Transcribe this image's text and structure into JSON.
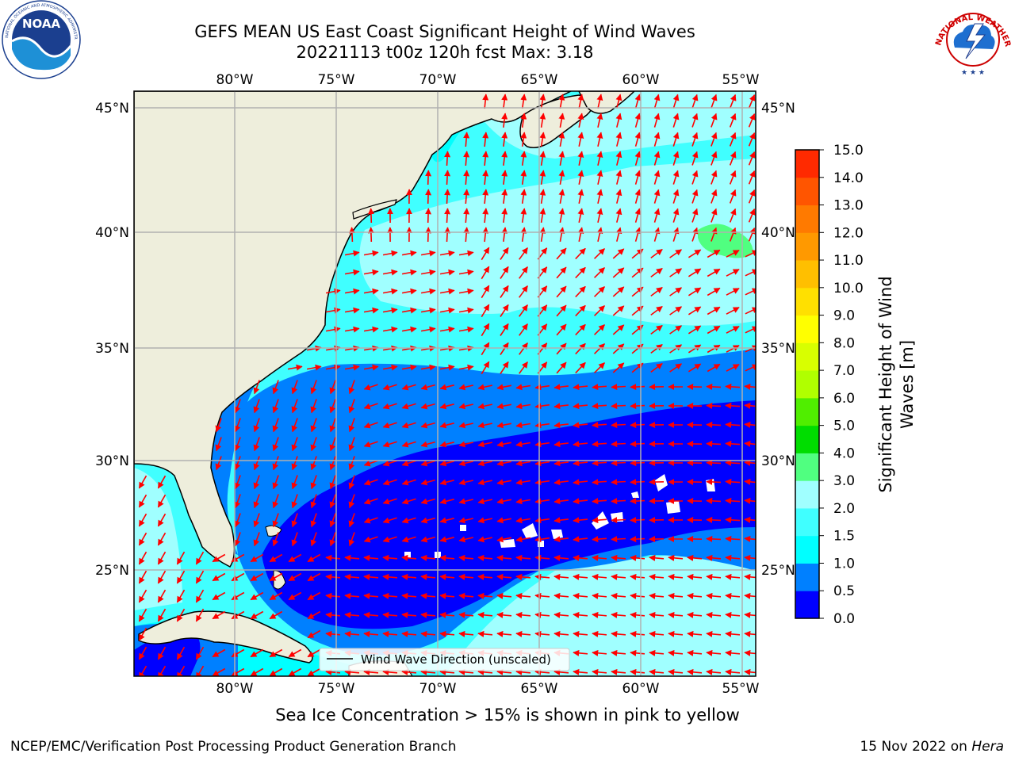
{
  "header": {
    "title_line1": "GEFS MEAN US East Coast Significant Height of Wind Waves",
    "title_line2": "20221113 t00z 120h fcst   Max: 3.18"
  },
  "logos": {
    "left": "NOAA",
    "left_ring_text": "NATIONAL OCEANIC AND ATMOSPHERIC ADMINISTRATION · U.S. DEPARTMENT OF COMMERCE",
    "right_ring_text": "NATIONAL WEATHER SERVICE"
  },
  "map": {
    "lon_ticks": [
      "80°W",
      "75°W",
      "70°W",
      "65°W",
      "60°W",
      "55°W"
    ],
    "lat_ticks": [
      "45°N",
      "40°N",
      "35°N",
      "30°N",
      "25°N"
    ],
    "legend_label": "Wind Wave Direction (unscaled)",
    "vector_color": "#ff0000",
    "land_color": "#eeeedc"
  },
  "colorbar": {
    "label_line1": "Significant Height of Wind",
    "label_line2": "Waves [m]",
    "ticks": [
      "0.0",
      "0.5",
      "1.0",
      "1.5",
      "2.0",
      "3.0",
      "4.0",
      "5.0",
      "6.0",
      "7.0",
      "8.0",
      "9.0",
      "10.0",
      "11.0",
      "12.0",
      "13.0",
      "14.0",
      "15.0"
    ],
    "colors": [
      "#0000ff",
      "#0080ff",
      "#00ffff",
      "#40ffff",
      "#a0ffff",
      "#50ff80",
      "#00dd00",
      "#50ee00",
      "#b0ff00",
      "#d8ff00",
      "#ffff00",
      "#ffe000",
      "#ffbf00",
      "#ff9900",
      "#ff7a00",
      "#ff5500",
      "#ff2a00",
      "#ff0000"
    ]
  },
  "footer": {
    "sea_ice_note": "Sea Ice Concentration > 15% is shown in pink to yellow",
    "credit": "NCEP/EMC/Verification Post Processing Product Generation Branch",
    "date": "15 Nov 2022 on",
    "machine": "Hera"
  }
}
